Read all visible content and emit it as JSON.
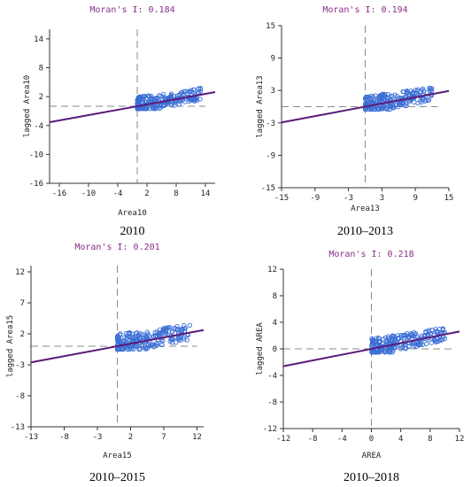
{
  "colors": {
    "points": "#3b6fd6",
    "regression": "#5a1a7a",
    "title": "#8a2e8a",
    "axis": "#333333",
    "dash": "#8a8a8a"
  },
  "chart_data": [
    {
      "type": "scatter",
      "title": "Moran's I: 0.184",
      "xlabel": "Area10",
      "ylabel": "lagged Area10",
      "caption": "2010",
      "xlim": [
        -18,
        16
      ],
      "ylim": [
        -16,
        16
      ],
      "xticks": [
        -16,
        -10,
        -4,
        2,
        8,
        14
      ],
      "yticks": [
        -16,
        -10,
        -4,
        2,
        8,
        14
      ],
      "slope": 0.184,
      "x_range": [
        0,
        13
      ],
      "y_range": [
        -0.5,
        4.5
      ],
      "n_points": 230
    },
    {
      "type": "scatter",
      "title": "Moran's I: 0.194",
      "xlabel": "Area13",
      "ylabel": "lagged Area13",
      "caption": "2010–2013",
      "xlim": [
        -15,
        15
      ],
      "ylim": [
        -15,
        15
      ],
      "xticks": [
        -15,
        -9,
        -3,
        3,
        9,
        15
      ],
      "yticks": [
        -15,
        -9,
        -3,
        3,
        9,
        15
      ],
      "slope": 0.194,
      "x_range": [
        0,
        12
      ],
      "y_range": [
        -0.5,
        4.5
      ],
      "n_points": 230
    },
    {
      "type": "scatter",
      "title": "Moran's I: 0.201",
      "xlabel": "Area15",
      "ylabel": "lagged Area15",
      "caption": "2010–2015",
      "xlim": [
        -13,
        13
      ],
      "ylim": [
        -13,
        13
      ],
      "xticks": [
        -13,
        -8,
        -3,
        2,
        7,
        12
      ],
      "yticks": [
        -13,
        -8,
        -3,
        2,
        7,
        12
      ],
      "slope": 0.201,
      "x_range": [
        0,
        11
      ],
      "y_range": [
        -0.5,
        4.5
      ],
      "n_points": 230
    },
    {
      "type": "scatter",
      "title": "Moran's I: 0.218",
      "xlabel": "AREA",
      "ylabel": "lagged AREA",
      "caption": "2010–2018",
      "xlim": [
        -12,
        12
      ],
      "ylim": [
        -12,
        12
      ],
      "xticks": [
        -12,
        -8,
        -4,
        0,
        4,
        8,
        12
      ],
      "yticks": [
        -12,
        -8,
        -4,
        0,
        4,
        8,
        12
      ],
      "slope": 0.218,
      "x_range": [
        0,
        10
      ],
      "y_range": [
        -0.5,
        3.5
      ],
      "n_points": 230
    }
  ]
}
